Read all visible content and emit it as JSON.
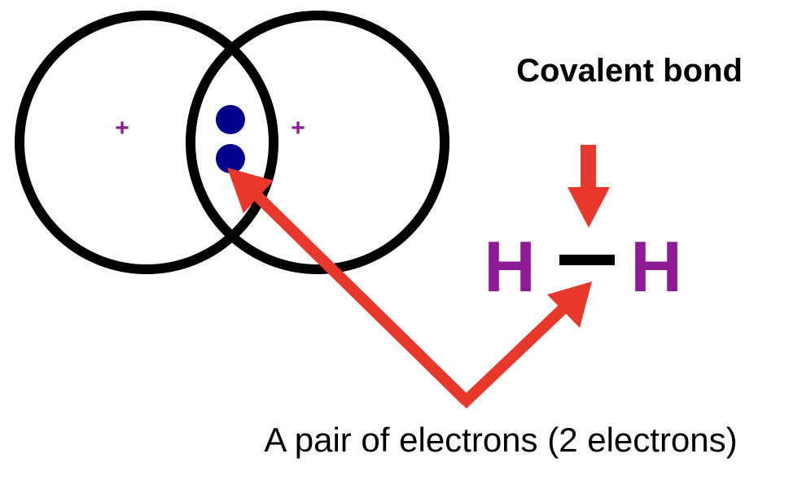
{
  "title": "Covalent bond",
  "nucleus_charge_left": "+",
  "nucleus_charge_right": "+",
  "formula": {
    "atom_left": "H",
    "atom_right": "H",
    "bond": "single"
  },
  "electron_count": 2,
  "caption": "A pair of electrons (2 electrons)",
  "colors": {
    "outline": "#000000",
    "charge": "#8b1f8f",
    "electron": "#00008b",
    "arrow": "#e8372b",
    "atom_text": "#8e1b96",
    "text": "#000000"
  },
  "icons": {
    "arrow_down": "down-arrow-icon",
    "arrow_diagonal": "diagonal-arrow-icon"
  }
}
